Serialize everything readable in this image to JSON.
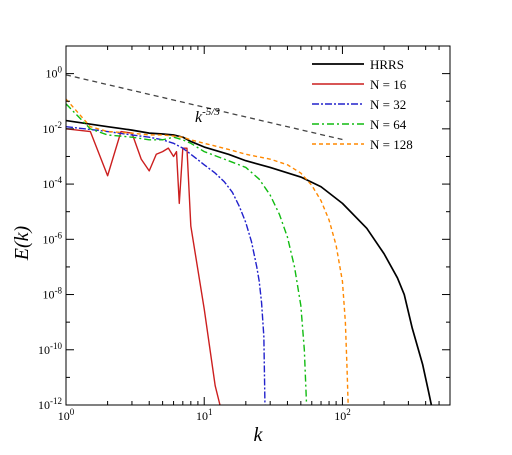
{
  "chart_data": {
    "type": "line",
    "xlabel": "k",
    "ylabel": "E(k)",
    "xscale": "log",
    "yscale": "log",
    "xlim": [
      1,
      600
    ],
    "ylim": [
      1e-12,
      10
    ],
    "grid": false,
    "legend_position": "top-right",
    "x_ticks": [
      {
        "value": 1,
        "base": "10",
        "exp": "0"
      },
      {
        "value": 10,
        "base": "10",
        "exp": "1"
      },
      {
        "value": 100,
        "base": "10",
        "exp": "2"
      }
    ],
    "y_ticks": [
      {
        "value": 1,
        "base": "10",
        "exp": "0"
      },
      {
        "value": 0.01,
        "base": "10",
        "exp": "-2"
      },
      {
        "value": 0.0001,
        "base": "10",
        "exp": "-4"
      },
      {
        "value": 1e-06,
        "base": "10",
        "exp": "-6"
      },
      {
        "value": 1e-08,
        "base": "10",
        "exp": "-8"
      },
      {
        "value": 1e-10,
        "base": "10",
        "exp": "-10"
      },
      {
        "value": 1e-12,
        "base": "10",
        "exp": "-12"
      }
    ],
    "reference_line": {
      "label_base": "k",
      "label_exp": "-5/3",
      "color": "#444444",
      "points": [
        [
          1,
          0.9
        ],
        [
          100,
          0.0041
        ]
      ]
    },
    "series": [
      {
        "name": "HRRS",
        "color": "#000000",
        "dash": "",
        "points": [
          [
            1,
            0.02
          ],
          [
            2,
            0.012
          ],
          [
            3,
            0.009
          ],
          [
            4,
            0.007
          ],
          [
            5,
            0.0065
          ],
          [
            6,
            0.006
          ],
          [
            7,
            0.005
          ],
          [
            8,
            0.0035
          ],
          [
            10,
            0.0022
          ],
          [
            15,
            0.0012
          ],
          [
            20,
            0.0007
          ],
          [
            30,
            0.0004
          ],
          [
            50,
            0.00018
          ],
          [
            70,
            8e-05
          ],
          [
            100,
            2e-05
          ],
          [
            150,
            2.5e-06
          ],
          [
            200,
            3e-07
          ],
          [
            250,
            4e-08
          ],
          [
            280,
            1e-08
          ],
          [
            320,
            6e-10
          ],
          [
            380,
            3e-11
          ],
          [
            420,
            3e-12
          ],
          [
            440,
            1e-12
          ]
        ]
      },
      {
        "name": "N = 16",
        "color": "#cc1f1f",
        "dash": "",
        "points": [
          [
            1,
            0.01
          ],
          [
            1.5,
            0.008
          ],
          [
            2,
            0.0002
          ],
          [
            2.5,
            0.008
          ],
          [
            3,
            0.007
          ],
          [
            3.5,
            0.0008
          ],
          [
            4,
            0.0003
          ],
          [
            4.5,
            0.0012
          ],
          [
            5,
            0.0015
          ],
          [
            5.5,
            0.002
          ],
          [
            6,
            0.001
          ],
          [
            6.3,
            0.0015
          ],
          [
            6.6,
            2e-05
          ],
          [
            7,
            0.002
          ],
          [
            7.5,
            0.002
          ],
          [
            8,
            3e-06
          ],
          [
            10,
            3e-09
          ],
          [
            12,
            5e-12
          ],
          [
            13,
            1e-12
          ]
        ]
      },
      {
        "name": "N = 32",
        "color": "#2222cc",
        "dash": "7,2,2,2",
        "points": [
          [
            1,
            0.012
          ],
          [
            2,
            0.008
          ],
          [
            3,
            0.006
          ],
          [
            4,
            0.005
          ],
          [
            5,
            0.004
          ],
          [
            6,
            0.003
          ],
          [
            7,
            0.002
          ],
          [
            8,
            0.0012
          ],
          [
            10,
            0.0005
          ],
          [
            12,
            0.00025
          ],
          [
            14,
            0.00012
          ],
          [
            16,
            5e-05
          ],
          [
            18,
            1.5e-05
          ],
          [
            20,
            4e-06
          ],
          [
            22,
            8e-07
          ],
          [
            24,
            1e-07
          ],
          [
            25,
            3e-08
          ],
          [
            26,
            5e-09
          ],
          [
            27,
            3e-10
          ],
          [
            27.5,
            1e-12
          ]
        ]
      },
      {
        "name": "N = 64",
        "color": "#11bb11",
        "dash": "7,3,2,3",
        "points": [
          [
            1,
            0.08
          ],
          [
            1.5,
            0.01
          ],
          [
            2,
            0.006
          ],
          [
            3,
            0.005
          ],
          [
            4,
            0.004
          ],
          [
            5,
            0.004
          ],
          [
            6,
            0.005
          ],
          [
            7,
            0.004
          ],
          [
            8,
            0.003
          ],
          [
            10,
            0.0015
          ],
          [
            15,
            0.0007
          ],
          [
            20,
            0.0004
          ],
          [
            25,
            0.00015
          ],
          [
            30,
            4e-05
          ],
          [
            35,
            8e-06
          ],
          [
            40,
            1.2e-06
          ],
          [
            45,
            1e-07
          ],
          [
            50,
            4e-09
          ],
          [
            53,
            1e-10
          ],
          [
            55,
            1e-12
          ]
        ]
      },
      {
        "name": "N = 128",
        "color": "#ff8800",
        "dash": "4,3",
        "points": [
          [
            1,
            0.12
          ],
          [
            1.5,
            0.012
          ],
          [
            2,
            0.008
          ],
          [
            3,
            0.007
          ],
          [
            4,
            0.006
          ],
          [
            5,
            0.006
          ],
          [
            6,
            0.0055
          ],
          [
            7,
            0.005
          ],
          [
            8,
            0.004
          ],
          [
            10,
            0.003
          ],
          [
            15,
            0.0018
          ],
          [
            20,
            0.0012
          ],
          [
            30,
            0.0008
          ],
          [
            40,
            0.0005
          ],
          [
            50,
            0.00025
          ],
          [
            60,
            9e-05
          ],
          [
            70,
            2.5e-05
          ],
          [
            80,
            5e-06
          ],
          [
            90,
            6e-07
          ],
          [
            100,
            3e-08
          ],
          [
            105,
            1e-09
          ],
          [
            108,
            2e-11
          ],
          [
            110,
            1e-12
          ]
        ]
      }
    ]
  }
}
